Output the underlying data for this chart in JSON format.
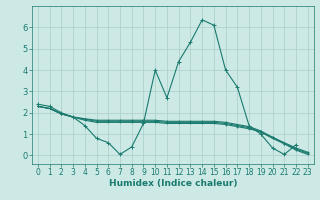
{
  "xlabel": "Humidex (Indice chaleur)",
  "background_color": "#cce9e5",
  "grid_color": "#aacfcb",
  "line_color": "#1a7a6e",
  "xlim": [
    -0.5,
    23.5
  ],
  "ylim": [
    -0.4,
    7.0
  ],
  "xticks": [
    0,
    1,
    2,
    3,
    4,
    5,
    6,
    7,
    8,
    9,
    10,
    11,
    12,
    13,
    14,
    15,
    16,
    17,
    18,
    19,
    20,
    21,
    22,
    23
  ],
  "yticks": [
    0,
    1,
    2,
    3,
    4,
    5,
    6
  ],
  "series": [
    [
      2.4,
      2.3,
      2.0,
      1.8,
      1.4,
      0.8,
      0.6,
      0.05,
      0.4,
      1.5,
      4.0,
      2.7,
      4.4,
      5.3,
      6.35,
      6.1,
      4.0,
      3.2,
      1.4,
      1.0,
      0.35,
      0.05,
      0.5,
      null
    ],
    [
      2.3,
      2.2,
      1.95,
      1.8,
      1.65,
      1.55,
      1.55,
      1.55,
      1.55,
      1.55,
      1.55,
      1.5,
      1.5,
      1.5,
      1.5,
      1.5,
      1.45,
      1.35,
      1.25,
      1.1,
      0.85,
      0.6,
      0.35,
      0.15
    ],
    [
      2.3,
      2.2,
      1.95,
      1.8,
      1.7,
      1.6,
      1.6,
      1.6,
      1.6,
      1.6,
      1.6,
      1.55,
      1.55,
      1.55,
      1.55,
      1.55,
      1.5,
      1.4,
      1.3,
      1.1,
      0.8,
      0.55,
      0.3,
      0.1
    ],
    [
      2.3,
      2.2,
      1.95,
      1.8,
      1.72,
      1.65,
      1.65,
      1.65,
      1.65,
      1.65,
      1.65,
      1.6,
      1.6,
      1.6,
      1.6,
      1.6,
      1.55,
      1.45,
      1.35,
      1.15,
      0.85,
      0.55,
      0.25,
      0.05
    ]
  ]
}
